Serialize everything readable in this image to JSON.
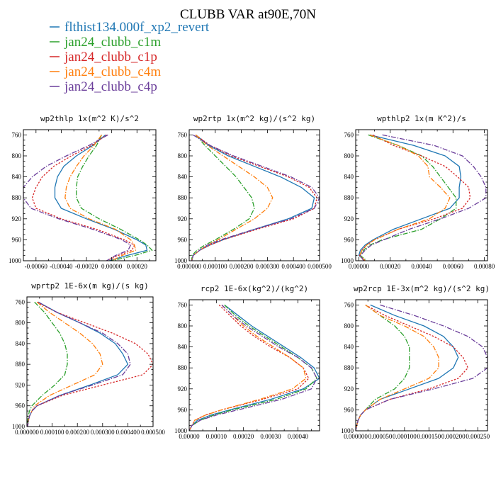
{
  "title": "CLUBB VAR at90E,70N",
  "colors": {
    "flthist134.000f_xp2_revert": "#1f77b4",
    "jan24_clubb_c1m": "#2ca02c",
    "jan24_clubb_c1p": "#d62728",
    "jan24_clubb_c4m": "#ff7f0e",
    "jan24_clubb_c4p": "#6a3d9a"
  },
  "legend": [
    "flthist134.000f_xp2_revert",
    "jan24_clubb_c1m",
    "jan24_clubb_c1p",
    "jan24_clubb_c4m",
    "jan24_clubb_c4p"
  ],
  "chart_data": [
    {
      "type": "line",
      "title": "wp2thlp  1x(m^2 K)/s^2",
      "xlim": [
        -0.0007,
        0.00035
      ],
      "ylim": [
        1000,
        750
      ],
      "xticks": [
        "-0.00060",
        "-0.00040",
        "-0.00020",
        "0.00000",
        "0.00020"
      ],
      "xtick_values": [
        -0.0006,
        -0.0004,
        -0.0002,
        0,
        0.0002
      ],
      "yticks": [
        760,
        800,
        840,
        880,
        920,
        960,
        1000
      ],
      "y": [
        760,
        780,
        800,
        820,
        840,
        860,
        880,
        900,
        920,
        940,
        960,
        970,
        980,
        990,
        1000
      ],
      "series": [
        {
          "name": "flthist134.000f_xp2_revert",
          "values": [
            -5e-05,
            -0.00015,
            -0.00028,
            -0.00038,
            -0.00043,
            -0.00045,
            -0.00045,
            -0.0004,
            -0.0002,
            2e-05,
            0.0002,
            0.00027,
            0.00028,
            0.00012,
            -2e-05
          ]
        },
        {
          "name": "jan24_clubb_c1m",
          "values": [
            -8e-05,
            -0.00012,
            -0.00018,
            -0.00023,
            -0.00027,
            -0.00028,
            -0.00028,
            -0.00024,
            -0.0001,
            7e-05,
            0.00022,
            0.00028,
            0.00032,
            0.00018,
            0
          ]
        },
        {
          "name": "jan24_clubb_c1p",
          "values": [
            -4e-05,
            -0.00016,
            -0.00032,
            -0.00046,
            -0.00055,
            -0.0006,
            -0.00063,
            -0.0006,
            -0.0004,
            -0.00012,
            0.0001,
            0.00018,
            0.00016,
            5e-05,
            -4e-05
          ]
        },
        {
          "name": "jan24_clubb_c4m",
          "values": [
            -8e-05,
            -0.00014,
            -0.00022,
            -0.00028,
            -0.00033,
            -0.00036,
            -0.00037,
            -0.00033,
            -0.00018,
            3e-05,
            0.00015,
            0.00018,
            0.00019,
            8e-05,
            0
          ]
        },
        {
          "name": "jan24_clubb_c4p",
          "values": [
            -3e-05,
            -0.00018,
            -0.00036,
            -0.00052,
            -0.00063,
            -0.0007,
            -0.0007,
            -0.00064,
            -0.00042,
            -0.00015,
            8e-05,
            0.00015,
            0.00013,
            3e-05,
            -4e-05
          ]
        }
      ]
    },
    {
      "type": "line",
      "title": "wp2rtp  1x(m^2 kg)/(s^2 kg)",
      "xlim": [
        0,
        0.0005
      ],
      "ylim": [
        1000,
        750
      ],
      "xticks": [
        "0.000000",
        "0.000100",
        "0.000200",
        "0.000300",
        "0.000400",
        "0.000500"
      ],
      "xtick_values": [
        0,
        0.0001,
        0.0002,
        0.0003,
        0.0004,
        0.0005
      ],
      "yticks": [
        760,
        800,
        840,
        880,
        920,
        960,
        1000
      ],
      "y": [
        760,
        780,
        800,
        820,
        840,
        860,
        880,
        900,
        920,
        940,
        960,
        970,
        980,
        990,
        1000
      ],
      "series": [
        {
          "name": "flthist134.000f_xp2_revert",
          "values": [
            2.5e-05,
            7.5e-05,
            0.00015,
            0.00025,
            0.00035,
            0.00043,
            0.00048,
            0.00047,
            0.00038,
            0.00025,
            0.00013,
            8e-05,
            4e-05,
            1.5e-05,
            1e-05
          ]
        },
        {
          "name": "jan24_clubb_c1m",
          "values": [
            2.5e-05,
            6e-05,
            0.0001,
            0.00014,
            0.00018,
            0.00021,
            0.00024,
            0.00025,
            0.00023,
            0.00017,
            0.0001,
            6e-05,
            3e-05,
            1e-05,
            1e-05
          ]
        },
        {
          "name": "jan24_clubb_c1p",
          "values": [
            2.5e-05,
            8e-05,
            0.00016,
            0.00027,
            0.00038,
            0.00046,
            0.00049,
            0.00048,
            0.0004,
            0.00026,
            0.00013,
            8e-05,
            4e-05,
            1.5e-05,
            1e-05
          ]
        },
        {
          "name": "jan24_clubb_c4m",
          "values": [
            2.5e-05,
            7e-05,
            0.00013,
            0.00019,
            0.00025,
            0.0003,
            0.00032,
            0.0003,
            0.00025,
            0.00018,
            0.00011,
            7e-05,
            4e-05,
            1.5e-05,
            1e-05
          ]
        },
        {
          "name": "jan24_clubb_c4p",
          "values": [
            1.5e-05,
            8e-05,
            0.00017,
            0.00028,
            0.00039,
            0.00047,
            0.0005,
            0.00048,
            0.00039,
            0.00025,
            0.00012,
            7e-05,
            4e-05,
            1.5e-05,
            1e-05
          ]
        }
      ]
    },
    {
      "type": "line",
      "title": "wpthlp2  1x(m K^2)/s",
      "xlim": [
        -2e-05,
        0.00082
      ],
      "ylim": [
        1000,
        750
      ],
      "xticks": [
        "0.00000",
        "0.00020",
        "0.00040",
        "0.00060",
        "0.00080"
      ],
      "xtick_values": [
        0,
        0.0002,
        0.0004,
        0.0006,
        0.0008
      ],
      "yticks": [
        760,
        800,
        840,
        880,
        920,
        960,
        1000
      ],
      "y": [
        760,
        780,
        800,
        820,
        840,
        860,
        880,
        900,
        920,
        940,
        960,
        970,
        980,
        990,
        1000
      ],
      "series": [
        {
          "name": "flthist134.000f_xp2_revert",
          "values": [
            7e-05,
            0.00035,
            0.00055,
            0.00064,
            0.00065,
            0.00064,
            0.00064,
            0.00058,
            0.0004,
            0.00022,
            9e-05,
            4e-05,
            1e-05,
            0,
            4e-05
          ]
        },
        {
          "name": "jan24_clubb_c1m",
          "values": [
            6e-05,
            0.00025,
            0.0004,
            0.00047,
            0.00052,
            0.00057,
            0.00062,
            0.00062,
            0.00052,
            0.0004,
            0.00015,
            7e-05,
            3e-05,
            1e-05,
            5e-05
          ]
        },
        {
          "name": "jan24_clubb_c1p",
          "values": [
            9e-05,
            0.00022,
            0.0004,
            0.00055,
            0.00063,
            0.0007,
            0.00071,
            0.00066,
            0.00048,
            0.00025,
            0.0001,
            5e-05,
            2e-05,
            5e-06,
            4e-05
          ]
        },
        {
          "name": "jan24_clubb_c4m",
          "values": [
            7e-05,
            0.00025,
            0.00038,
            0.00044,
            0.00045,
            0.00052,
            0.00058,
            0.00055,
            0.00045,
            0.00025,
            0.0001,
            5e-05,
            2e-05,
            5e-06,
            4e-05
          ]
        },
        {
          "name": "jan24_clubb_c4p",
          "values": [
            0.00015,
            0.00048,
            0.00066,
            0.00073,
            0.00078,
            0.00081,
            0.00081,
            0.0007,
            0.00052,
            0.00032,
            0.00016,
            8e-05,
            4e-05,
            1e-05,
            3e-05
          ]
        }
      ]
    },
    {
      "type": "line",
      "title": "wprtp2  1E-6x(m kg)/(s kg)",
      "xlim": [
        0,
        0.0005
      ],
      "ylim": [
        1000,
        750
      ],
      "xticks": [
        "0.000000",
        "0.000100",
        "0.000200",
        "0.000300",
        "0.000400",
        "0.000500"
      ],
      "xtick_values": [
        0,
        0.0001,
        0.0002,
        0.0003,
        0.0004,
        0.0005
      ],
      "yticks": [
        760,
        800,
        840,
        880,
        920,
        960,
        1000
      ],
      "y": [
        760,
        780,
        800,
        820,
        840,
        860,
        880,
        900,
        920,
        940,
        960,
        970,
        980,
        990,
        1000
      ],
      "series": [
        {
          "name": "flthist134.000f_xp2_revert",
          "values": [
            4.5e-05,
            0.00012,
            0.00021,
            0.00029,
            0.00035,
            0.00038,
            0.0004,
            0.00036,
            0.00025,
            0.00013,
            4e-05,
            2e-05,
            1e-05,
            5e-06,
            3e-06
          ]
        },
        {
          "name": "jan24_clubb_c1m",
          "values": [
            3e-05,
            7e-05,
            0.0001,
            0.00013,
            0.00015,
            0.00016,
            0.00016,
            0.00015,
            0.00011,
            6e-05,
            2e-05,
            1e-05,
            5e-06,
            3e-06,
            2e-06
          ]
        },
        {
          "name": "jan24_clubb_c1p",
          "values": [
            4e-05,
            0.00012,
            0.00023,
            0.00034,
            0.00043,
            0.00048,
            0.0005,
            0.00046,
            0.0003,
            0.00014,
            4e-05,
            2e-05,
            1e-05,
            5e-06,
            3e-06
          ]
        },
        {
          "name": "jan24_clubb_c4m",
          "values": [
            4e-05,
            9e-05,
            0.00015,
            0.00021,
            0.00026,
            0.00029,
            0.0003,
            0.00027,
            0.00018,
            9e-05,
            3e-05,
            2e-05,
            1e-05,
            5e-06,
            3e-06
          ]
        },
        {
          "name": "jan24_clubb_c4p",
          "values": [
            4.5e-05,
            0.00012,
            0.00021,
            0.0003,
            0.00036,
            0.0004,
            0.00041,
            0.00038,
            0.00026,
            0.00013,
            4e-05,
            2e-05,
            1e-05,
            5e-06,
            3e-06
          ]
        }
      ]
    },
    {
      "type": "line",
      "title": "rcp2  1E-6x(kg^2)/(kg^2)",
      "xlim": [
        0,
        0.00048
      ],
      "ylim": [
        1000,
        750
      ],
      "xticks": [
        "0.00000",
        "0.00010",
        "0.00020",
        "0.00030",
        "0.00040"
      ],
      "xtick_values": [
        0,
        0.0001,
        0.0002,
        0.0003,
        0.0004
      ],
      "yticks": [
        760,
        800,
        840,
        880,
        920,
        960,
        1000
      ],
      "y": [
        760,
        780,
        800,
        820,
        840,
        860,
        880,
        900,
        920,
        940,
        960,
        970,
        980,
        990,
        1000
      ],
      "series": [
        {
          "name": "flthist134.000f_xp2_revert",
          "values": [
            0.00013,
            0.00018,
            0.00023,
            0.00029,
            0.00035,
            0.00041,
            0.00046,
            0.00048,
            0.00042,
            0.0003,
            0.00015,
            8e-05,
            3e-05,
            1e-05,
            0
          ]
        },
        {
          "name": "jan24_clubb_c1m",
          "values": [
            0.00013,
            0.00017,
            0.00022,
            0.00028,
            0.00034,
            0.0004,
            0.00045,
            0.00047,
            0.00043,
            0.00032,
            0.00016,
            9e-05,
            4e-05,
            1e-05,
            0
          ]
        },
        {
          "name": "jan24_clubb_c1p",
          "values": [
            0.00011,
            0.00015,
            0.00019,
            0.00024,
            0.0003,
            0.00037,
            0.00042,
            0.00044,
            0.0004,
            0.00027,
            0.00012,
            6e-05,
            2e-05,
            1e-05,
            0
          ]
        },
        {
          "name": "jan24_clubb_c4m",
          "values": [
            0.00012,
            0.00016,
            0.0002,
            0.00025,
            0.00031,
            0.00037,
            0.00042,
            0.00043,
            0.00038,
            0.00026,
            0.00012,
            6e-05,
            2e-05,
            1e-05,
            0
          ]
        },
        {
          "name": "jan24_clubb_c4p",
          "values": [
            0.00012,
            0.00016,
            0.00021,
            0.00027,
            0.00033,
            0.0004,
            0.00045,
            0.00047,
            0.00045,
            0.00034,
            0.00018,
            0.0001,
            4e-05,
            1e-05,
            0
          ]
        }
      ]
    },
    {
      "type": "line",
      "title": "wp2rcp  1E-3x(m^2 kg)/(s^2 kg)",
      "xlim": [
        0,
        0.00027
      ],
      "ylim": [
        1000,
        750
      ],
      "xticks": [
        "0.000000",
        "0.000050",
        "0.000100",
        "0.000150",
        "0.000200",
        "0.000250"
      ],
      "xtick_values": [
        0,
        5e-05,
        0.0001,
        0.00015,
        0.0002,
        0.00025
      ],
      "yticks": [
        760,
        800,
        840,
        880,
        920,
        960,
        1000
      ],
      "y": [
        760,
        780,
        800,
        820,
        840,
        860,
        880,
        900,
        920,
        940,
        960,
        970,
        980,
        990,
        1000
      ],
      "series": [
        {
          "name": "flthist134.000f_xp2_revert",
          "values": [
            3e-05,
            8e-05,
            0.00014,
            0.00018,
            0.0002,
            0.00021,
            0.0002,
            0.00017,
            0.00011,
            5e-05,
            2e-05,
            1e-05,
            5e-06,
            2e-06,
            0
          ]
        },
        {
          "name": "jan24_clubb_c1m",
          "values": [
            2e-05,
            5e-05,
            8e-05,
            0.0001,
            0.00011,
            0.00011,
            0.00011,
            0.0001,
            8e-05,
            4e-05,
            2e-05,
            1e-05,
            5e-06,
            2e-06,
            0
          ]
        },
        {
          "name": "jan24_clubb_c1p",
          "values": [
            2e-05,
            6e-05,
            0.00011,
            0.00016,
            0.0002,
            0.00022,
            0.00023,
            0.00021,
            0.00015,
            7e-05,
            2e-05,
            1e-05,
            5e-06,
            2e-06,
            0
          ]
        },
        {
          "name": "jan24_clubb_c4m",
          "values": [
            2e-05,
            5e-05,
            0.0001,
            0.00014,
            0.00016,
            0.00017,
            0.00017,
            0.00015,
            0.0001,
            5e-05,
            2e-05,
            1e-05,
            5e-06,
            2e-06,
            0
          ]
        },
        {
          "name": "jan24_clubb_c4p",
          "values": [
            5e-05,
            0.00012,
            0.00018,
            0.00023,
            0.00026,
            0.00027,
            0.00027,
            0.00024,
            0.00016,
            7e-05,
            2e-05,
            1e-05,
            5e-06,
            2e-06,
            0
          ]
        }
      ]
    }
  ]
}
